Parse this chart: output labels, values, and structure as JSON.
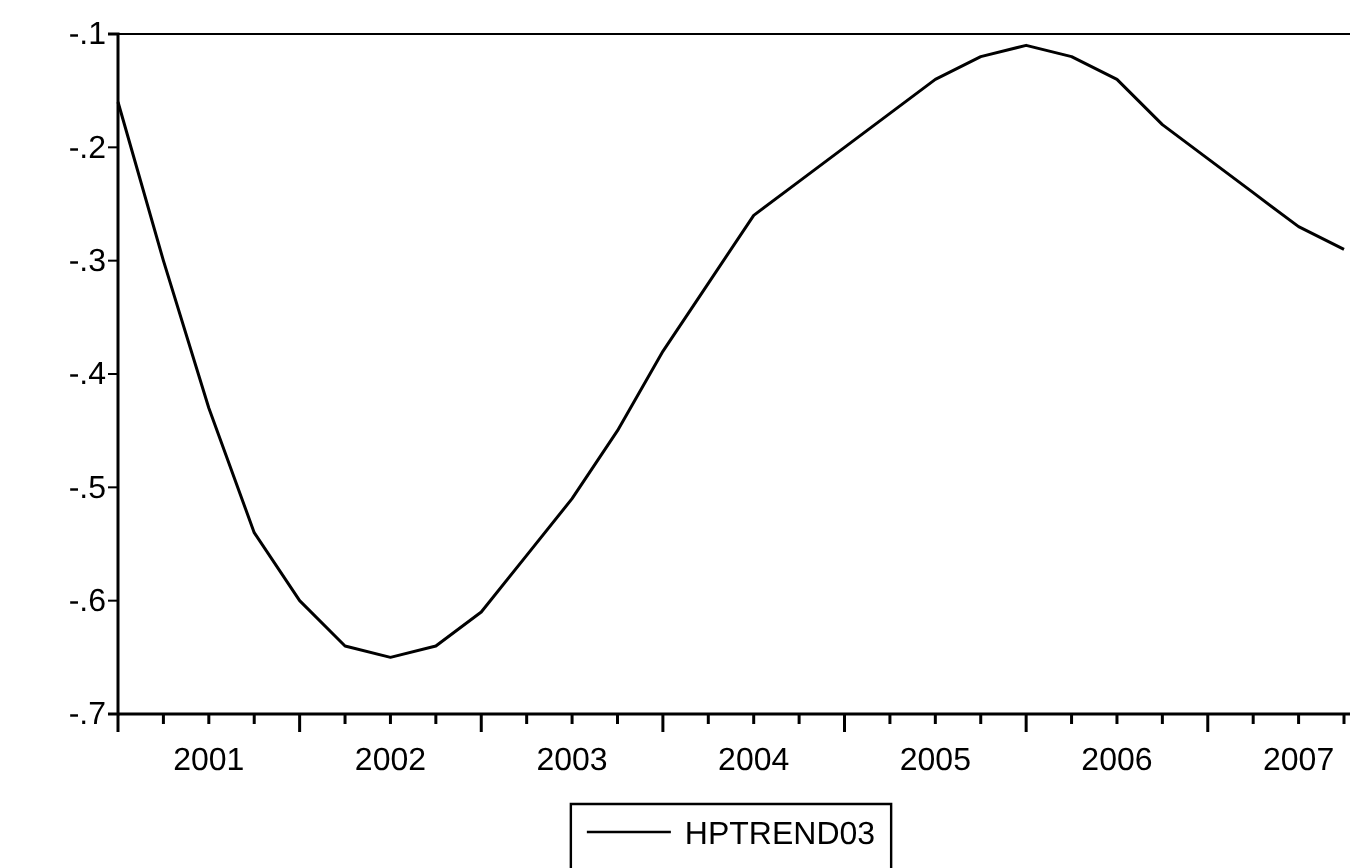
{
  "chart_data": {
    "type": "line",
    "x": [
      2001,
      2001.25,
      2001.5,
      2001.75,
      2002,
      2002.25,
      2002.5,
      2002.75,
      2003,
      2003.25,
      2003.5,
      2003.75,
      2004,
      2004.25,
      2004.5,
      2004.75,
      2005,
      2005.25,
      2005.5,
      2005.75,
      2006,
      2006.25,
      2006.5,
      2006.75,
      2007,
      2007.25,
      2007.5,
      2007.75
    ],
    "series": [
      {
        "name": "HPTREND03",
        "color": "#000000",
        "values": [
          -0.16,
          -0.3,
          -0.43,
          -0.54,
          -0.6,
          -0.64,
          -0.65,
          -0.64,
          -0.61,
          -0.56,
          -0.51,
          -0.45,
          -0.38,
          -0.32,
          -0.26,
          -0.23,
          -0.2,
          -0.17,
          -0.14,
          -0.12,
          -0.11,
          -0.12,
          -0.14,
          -0.18,
          -0.21,
          -0.24,
          -0.27,
          -0.29
        ]
      }
    ],
    "xlim": [
      2001,
      2007.75
    ],
    "xticks": [
      {
        "value": 2001,
        "label": null
      },
      {
        "value": 2001.25,
        "label": null
      },
      {
        "value": 2001.5,
        "label": "2001"
      },
      {
        "value": 2001.75,
        "label": null
      },
      {
        "value": 2002,
        "label": null
      },
      {
        "value": 2002.25,
        "label": null
      },
      {
        "value": 2002.5,
        "label": "2002"
      },
      {
        "value": 2002.75,
        "label": null
      },
      {
        "value": 2003,
        "label": null
      },
      {
        "value": 2003.25,
        "label": null
      },
      {
        "value": 2003.5,
        "label": "2003"
      },
      {
        "value": 2003.75,
        "label": null
      },
      {
        "value": 2004,
        "label": null
      },
      {
        "value": 2004.25,
        "label": null
      },
      {
        "value": 2004.5,
        "label": "2004"
      },
      {
        "value": 2004.75,
        "label": null
      },
      {
        "value": 2005,
        "label": null
      },
      {
        "value": 2005.25,
        "label": null
      },
      {
        "value": 2005.5,
        "label": "2005"
      },
      {
        "value": 2005.75,
        "label": null
      },
      {
        "value": 2006,
        "label": null
      },
      {
        "value": 2006.25,
        "label": null
      },
      {
        "value": 2006.5,
        "label": "2006"
      },
      {
        "value": 2006.75,
        "label": null
      },
      {
        "value": 2007,
        "label": null
      },
      {
        "value": 2007.25,
        "label": null
      },
      {
        "value": 2007.5,
        "label": "2007"
      },
      {
        "value": 2007.75,
        "label": null
      }
    ],
    "ylim": [
      -0.7,
      -0.1
    ],
    "yticks": [
      {
        "value": -0.7,
        "label": "-.7"
      },
      {
        "value": -0.6,
        "label": "-.6"
      },
      {
        "value": -0.5,
        "label": "-.5"
      },
      {
        "value": -0.4,
        "label": "-.4"
      },
      {
        "value": -0.3,
        "label": "-.3"
      },
      {
        "value": -0.2,
        "label": "-.2"
      },
      {
        "value": -0.1,
        "label": "-.1"
      }
    ],
    "grid": false,
    "legend": "bottom",
    "line_style": "solid",
    "marker": "none"
  }
}
